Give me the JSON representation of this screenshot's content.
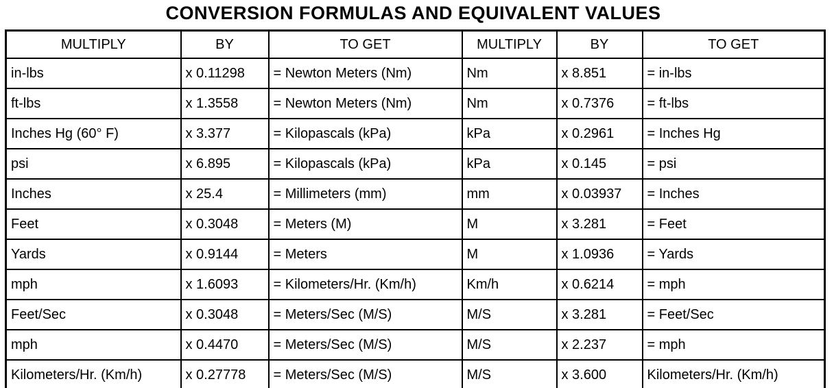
{
  "title": "CONVERSION FORMULAS AND EQUIVALENT VALUES",
  "table": {
    "headers": [
      "MULTIPLY",
      "BY",
      "TO GET",
      "MULTIPLY",
      "BY",
      "TO GET"
    ],
    "rows": [
      [
        "in-lbs",
        "x 0.11298",
        "= Newton Meters (Nm)",
        "Nm",
        "x 8.851",
        "= in-lbs"
      ],
      [
        "ft-lbs",
        "x 1.3558",
        "= Newton Meters (Nm)",
        "Nm",
        "x 0.7376",
        "= ft-lbs"
      ],
      [
        "Inches Hg (60° F)",
        "x 3.377",
        "= Kilopascals (kPa)",
        "kPa",
        "x 0.2961",
        "= Inches Hg"
      ],
      [
        "psi",
        "x 6.895",
        "= Kilopascals (kPa)",
        "kPa",
        "x 0.145",
        "= psi"
      ],
      [
        "Inches",
        "x 25.4",
        "= Millimeters (mm)",
        "mm",
        "x 0.03937",
        "= Inches"
      ],
      [
        "Feet",
        "x 0.3048",
        "= Meters (M)",
        "M",
        "x 3.281",
        "= Feet"
      ],
      [
        "Yards",
        "x 0.9144",
        "= Meters",
        "M",
        "x 1.0936",
        "= Yards"
      ],
      [
        "mph",
        "x 1.6093",
        "= Kilometers/Hr. (Km/h)",
        "Km/h",
        "x 0.6214",
        "= mph"
      ],
      [
        "Feet/Sec",
        "x 0.3048",
        "= Meters/Sec (M/S)",
        "M/S",
        "x 3.281",
        "= Feet/Sec"
      ],
      [
        "mph",
        "x 0.4470",
        "= Meters/Sec (M/S)",
        "M/S",
        "x 2.237",
        "= mph"
      ],
      [
        "Kilometers/Hr. (Km/h)",
        "x 0.27778",
        "= Meters/Sec (M/S)",
        "M/S",
        "x 3.600",
        "Kilometers/Hr. (Km/h)"
      ]
    ]
  },
  "colors": {
    "text": "#000000",
    "background": "#ffffff",
    "border": "#000000"
  }
}
